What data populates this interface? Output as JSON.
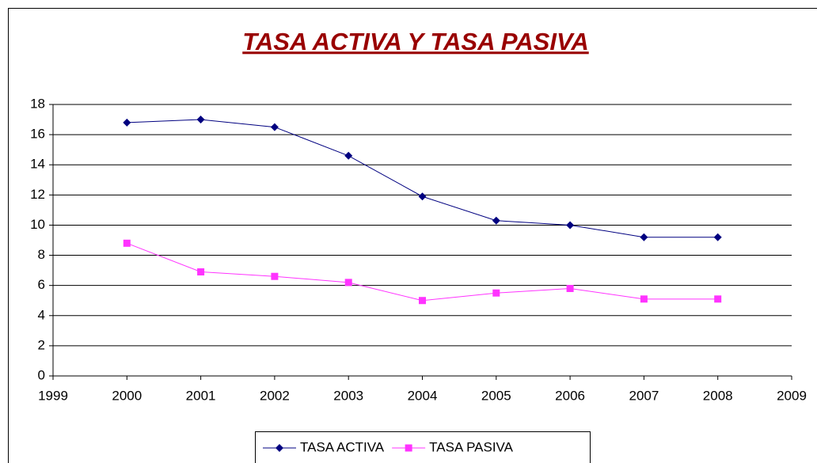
{
  "chart_data": {
    "type": "line",
    "title": "TASA ACTIVA Y TASA PASIVA",
    "x": [
      2000,
      2001,
      2002,
      2003,
      2004,
      2005,
      2006,
      2007,
      2008
    ],
    "series": [
      {
        "name": "TASA ACTIVA",
        "color": "#000080",
        "marker": "diamond",
        "values": [
          16.8,
          17.0,
          16.5,
          14.6,
          11.9,
          10.3,
          10.0,
          9.2,
          9.2
        ]
      },
      {
        "name": "TASA PASIVA",
        "color": "#ff33ff",
        "marker": "square",
        "values": [
          8.8,
          6.9,
          6.6,
          6.2,
          5.0,
          5.5,
          5.8,
          5.1,
          5.1
        ]
      }
    ],
    "xlim": [
      1999,
      2009
    ],
    "xticks": [
      1999,
      2000,
      2001,
      2002,
      2003,
      2004,
      2005,
      2006,
      2007,
      2008,
      2009
    ],
    "ylim": [
      0,
      18
    ],
    "yticks": [
      0,
      2,
      4,
      6,
      8,
      10,
      12,
      14,
      16,
      18
    ],
    "grid": true,
    "legend": "bottom"
  }
}
